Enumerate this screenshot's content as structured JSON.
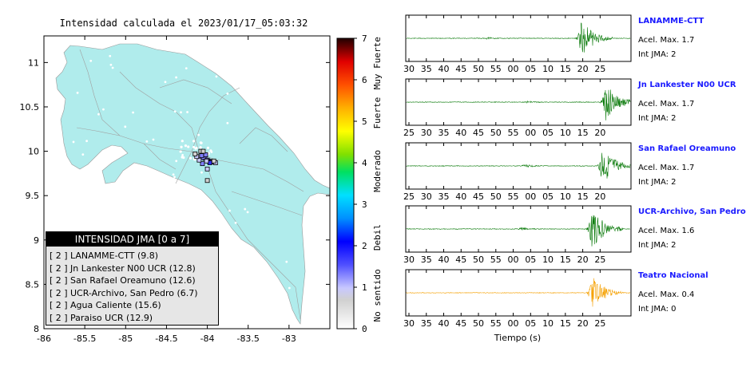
{
  "colors": {
    "land": "#b0ecec",
    "roads": "#a0a0a0",
    "station_border": "#000000",
    "trace_green": "#0a7a0a",
    "trace_orange": "#f5a000",
    "station_label": "#1a1aff"
  },
  "chart_data": [
    {
      "type": "map",
      "title": "Intensidad calculada el 2023/01/17_05:03:32",
      "xlim": [
        -86,
        -82.5
      ],
      "ylim": [
        8,
        11.3
      ],
      "x_ticks": [
        "-86",
        "-85.5",
        "-85",
        "-84.5",
        "-84",
        "-83.5",
        "-83"
      ],
      "y_ticks": [
        "8",
        "8.5",
        "9",
        "9.5",
        "10",
        "10.5",
        "11"
      ],
      "colorbar": {
        "ticks": [
          "0",
          "1",
          "2",
          "3",
          "4",
          "5",
          "6",
          "7"
        ],
        "categories": [
          "No sentido",
          "Debil",
          "Moderado",
          "Fuerte",
          "Muy Fuerte"
        ],
        "range": [
          0,
          7
        ]
      },
      "stations": [
        {
          "lon": -84.03,
          "lat": 9.92,
          "intensity": 2
        },
        {
          "lon": -84.05,
          "lat": 9.93,
          "intensity": 2
        },
        {
          "lon": -84.02,
          "lat": 9.96,
          "intensity": 2
        },
        {
          "lon": -84.07,
          "lat": 9.95,
          "intensity": 2
        },
        {
          "lon": -84.06,
          "lat": 9.86,
          "intensity": 2
        },
        {
          "lon": -83.98,
          "lat": 9.89,
          "intensity": 2
        },
        {
          "lon": -84.0,
          "lat": 9.9,
          "intensity": 2
        },
        {
          "lon": -83.95,
          "lat": 9.88,
          "intensity": 2
        },
        {
          "lon": -83.97,
          "lat": 9.87,
          "intensity": 3
        },
        {
          "lon": -84.01,
          "lat": 9.89,
          "intensity": 1
        },
        {
          "lon": -84.1,
          "lat": 9.9,
          "intensity": 1
        },
        {
          "lon": -84.13,
          "lat": 9.94,
          "intensity": 1
        },
        {
          "lon": -84.15,
          "lat": 9.97,
          "intensity": 0
        },
        {
          "lon": -84.08,
          "lat": 10.0,
          "intensity": 0
        },
        {
          "lon": -84.05,
          "lat": 10.0,
          "intensity": 0
        },
        {
          "lon": -83.9,
          "lat": 9.87,
          "intensity": 1
        },
        {
          "lon": -84.0,
          "lat": 9.8,
          "intensity": 1
        },
        {
          "lon": -84.0,
          "lat": 9.67,
          "intensity": 0
        },
        {
          "lon": -83.92,
          "lat": 9.89,
          "intensity": 0
        }
      ]
    },
    {
      "type": "line",
      "xlabel": "Tiempo (s)",
      "panels": [
        {
          "name": "LANAMME-CTT",
          "acel": "Acel. Max. 1.7",
          "jma": "Int JMA: 2",
          "x_ticks": [
            "30",
            "35",
            "40",
            "45",
            "50",
            "55",
            "00",
            "05",
            "10",
            "15",
            "20",
            "25"
          ],
          "x_start": 30,
          "color": "green",
          "bursts": [
            [
              52.5,
              0.06
            ],
            [
              79.5,
              0.9
            ]
          ]
        },
        {
          "name": "Jn Lankester N00 UCR",
          "acel": "Acel. Max. 1.7",
          "jma": "Int JMA: 2",
          "x_ticks": [
            "25",
            "30",
            "35",
            "40",
            "45",
            "50",
            "55",
            "00",
            "05",
            "10",
            "15",
            "20"
          ],
          "x_start": 25,
          "color": "green",
          "bursts": [
            [
              59,
              0.06
            ],
            [
              81.5,
              0.9
            ]
          ]
        },
        {
          "name": "San Rafael Oreamuno",
          "acel": "Acel. Max. 1.7",
          "jma": "Int JMA: 2",
          "x_ticks": [
            "25",
            "30",
            "35",
            "40",
            "45",
            "50",
            "55",
            "00",
            "05",
            "10",
            "15",
            "20"
          ],
          "x_start": 25,
          "color": "green",
          "bursts": [
            [
              58,
              0.08
            ],
            [
              80.5,
              0.9
            ]
          ]
        },
        {
          "name": "UCR-Archivo, San Pedro",
          "acel": "Acel. Max. 1.6",
          "jma": "Int JMA: 2",
          "x_ticks": [
            "30",
            "35",
            "40",
            "45",
            "50",
            "55",
            "00",
            "05",
            "10",
            "15",
            "20",
            "25"
          ],
          "x_start": 30,
          "color": "green",
          "bursts": [
            [
              62,
              0.08
            ],
            [
              82.5,
              1.0
            ]
          ]
        },
        {
          "name": "Teatro Nacional",
          "acel": "Acel. Max. 0.4",
          "jma": "Int JMA: 0",
          "x_ticks": [
            "30",
            "35",
            "40",
            "45",
            "50",
            "55",
            "00",
            "05",
            "10",
            "15",
            "20",
            "25"
          ],
          "x_start": 30,
          "color": "orange",
          "bursts": [
            [
              82.5,
              0.85
            ]
          ]
        }
      ]
    }
  ],
  "legend": {
    "header": "INTENSIDAD JMA [0 a 7]",
    "rows": [
      {
        "level": "[ 2 ]",
        "label": "LANAMME-CTT (9.8)"
      },
      {
        "level": "[ 2 ]",
        "label": "Jn Lankester N00 UCR (12.8)"
      },
      {
        "level": "[ 2 ]",
        "label": "San Rafael Oreamuno (12.6)"
      },
      {
        "level": "[ 2 ]",
        "label": "UCR-Archivo, San Pedro (6.7)"
      },
      {
        "level": "[ 2 ]",
        "label": "Agua Caliente (15.6)"
      },
      {
        "level": "[ 2 ]",
        "label": "Paraiso UCR (12.9)"
      }
    ]
  }
}
